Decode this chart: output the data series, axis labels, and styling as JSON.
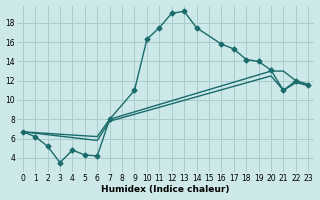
{
  "xlabel": "Humidex (Indice chaleur)",
  "bg_color": "#cce8e8",
  "grid_color": "#aacccc",
  "line_color": "#1a6b6b",
  "xlim": [
    -0.5,
    23.5
  ],
  "ylim": [
    2.5,
    19.8
  ],
  "xticks": [
    0,
    1,
    2,
    3,
    4,
    5,
    6,
    7,
    8,
    9,
    10,
    11,
    12,
    13,
    14,
    15,
    16,
    17,
    18,
    19,
    20,
    21,
    22,
    23
  ],
  "yticks": [
    4,
    6,
    8,
    10,
    12,
    14,
    16,
    18
  ],
  "curve1_x": [
    0,
    1,
    2,
    3,
    4,
    5,
    6,
    7,
    9,
    10,
    11,
    12,
    13,
    14,
    16,
    17,
    18,
    19,
    20,
    21,
    22,
    23
  ],
  "curve1_y": [
    6.7,
    6.2,
    5.2,
    3.5,
    4.8,
    4.3,
    4.2,
    8.0,
    11.0,
    16.3,
    17.5,
    19.0,
    19.2,
    17.5,
    15.8,
    15.3,
    14.2,
    14.0,
    13.1,
    11.0,
    12.0,
    11.6
  ],
  "curve2_x": [
    0,
    6,
    7,
    20,
    21,
    22,
    23
  ],
  "curve2_y": [
    6.7,
    6.2,
    8.0,
    13.0,
    13.0,
    12.0,
    11.6
  ],
  "curve3_x": [
    0,
    6,
    7,
    20,
    21,
    22,
    23
  ],
  "curve3_y": [
    6.7,
    5.8,
    7.8,
    12.5,
    11.0,
    11.8,
    11.5
  ]
}
